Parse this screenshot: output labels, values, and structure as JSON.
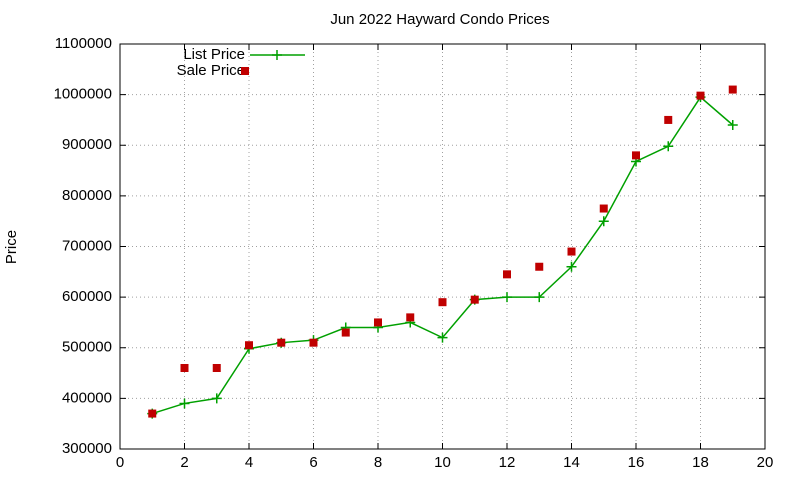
{
  "chart_data": {
    "type": "line",
    "title": "Jun 2022 Hayward Condo Prices",
    "y_label": "Price",
    "x": [
      1,
      2,
      3,
      4,
      5,
      6,
      7,
      8,
      9,
      10,
      11,
      12,
      13,
      14,
      15,
      16,
      17,
      18,
      19
    ],
    "series": [
      {
        "name": "List Price",
        "color": "#00a000",
        "style": "linespoints",
        "values": [
          370000,
          390000,
          400000,
          498000,
          510000,
          515000,
          540000,
          540000,
          550000,
          520000,
          595000,
          600000,
          600000,
          660000,
          750000,
          868000,
          898000,
          995000,
          940000
        ]
      },
      {
        "name": "Sale Price",
        "color": "#c00000",
        "style": "points",
        "values": [
          370000,
          460000,
          460000,
          505000,
          510000,
          510000,
          530000,
          550000,
          560000,
          590000,
          595000,
          645000,
          660000,
          690000,
          775000,
          880000,
          950000,
          998000,
          1010000
        ]
      }
    ],
    "xlim": [
      0,
      20
    ],
    "xticks": [
      0,
      2,
      4,
      6,
      8,
      10,
      12,
      14,
      16,
      18,
      20
    ],
    "ylim": [
      300000,
      1100000
    ],
    "yticks": [
      300000,
      400000,
      500000,
      600000,
      700000,
      800000,
      900000,
      1000000,
      1100000
    ],
    "grid": true,
    "legend": "top-left"
  }
}
